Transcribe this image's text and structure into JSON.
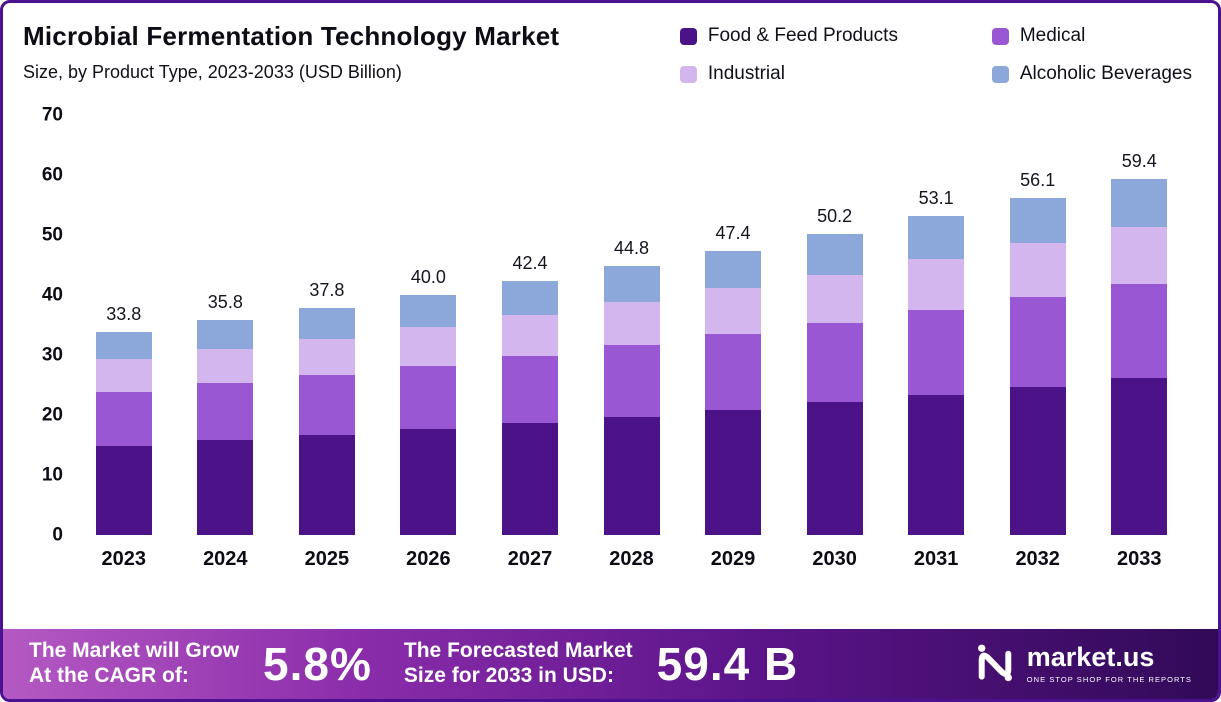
{
  "chart_data": {
    "type": "bar",
    "stacked": true,
    "title": "Microbial Fermentation Technology Market",
    "subtitle": "Size, by Product Type, 2023-2033 (USD Billion)",
    "categories": [
      "2023",
      "2024",
      "2025",
      "2026",
      "2027",
      "2028",
      "2029",
      "2030",
      "2031",
      "2032",
      "2033"
    ],
    "series": [
      {
        "name": "Food & Feed Products",
        "color": "#4c1287",
        "values": [
          14.9,
          15.8,
          16.6,
          17.6,
          18.7,
          19.7,
          20.9,
          22.1,
          23.4,
          24.7,
          26.1
        ]
      },
      {
        "name": "Medical",
        "color": "#9a57d3",
        "values": [
          9.0,
          9.5,
          10.0,
          10.6,
          11.2,
          11.9,
          12.6,
          13.3,
          14.1,
          14.9,
          15.7
        ]
      },
      {
        "name": "Industrial",
        "color": "#d4b6ee",
        "values": [
          5.4,
          5.7,
          6.0,
          6.4,
          6.8,
          7.2,
          7.6,
          8.0,
          8.5,
          9.0,
          9.5
        ]
      },
      {
        "name": "Alcoholic Beverages",
        "color": "#8ca7da",
        "values": [
          4.5,
          4.8,
          5.2,
          5.4,
          5.7,
          6.0,
          6.3,
          6.8,
          7.1,
          7.5,
          8.1
        ]
      }
    ],
    "totals": [
      33.8,
      35.8,
      37.8,
      40.0,
      42.4,
      44.8,
      47.4,
      50.2,
      53.1,
      56.1,
      59.4
    ],
    "xlabel": "",
    "ylabel": "",
    "ylim": [
      0,
      70
    ],
    "y_ticks": [
      0,
      10,
      20,
      30,
      40,
      50,
      60,
      70
    ],
    "grid": false,
    "legend_position": "top-right",
    "value_labels": "total shown above each bar"
  },
  "banner": {
    "cagr_label_line1": "The Market will Grow",
    "cagr_label_line2": "At the CAGR of:",
    "cagr_value": "5.8%",
    "forecast_label_line1": "The Forecasted Market",
    "forecast_label_line2": "Size for 2033 in USD:",
    "forecast_value": "59.4 B",
    "logo_text": "market.us",
    "logo_tagline": "ONE STOP SHOP FOR THE REPORTS"
  },
  "colors": {
    "frame_border": "#4b1191",
    "banner_gradient_start": "#b459c3",
    "banner_gradient_end": "#310a58",
    "text": "#0c0c15"
  }
}
